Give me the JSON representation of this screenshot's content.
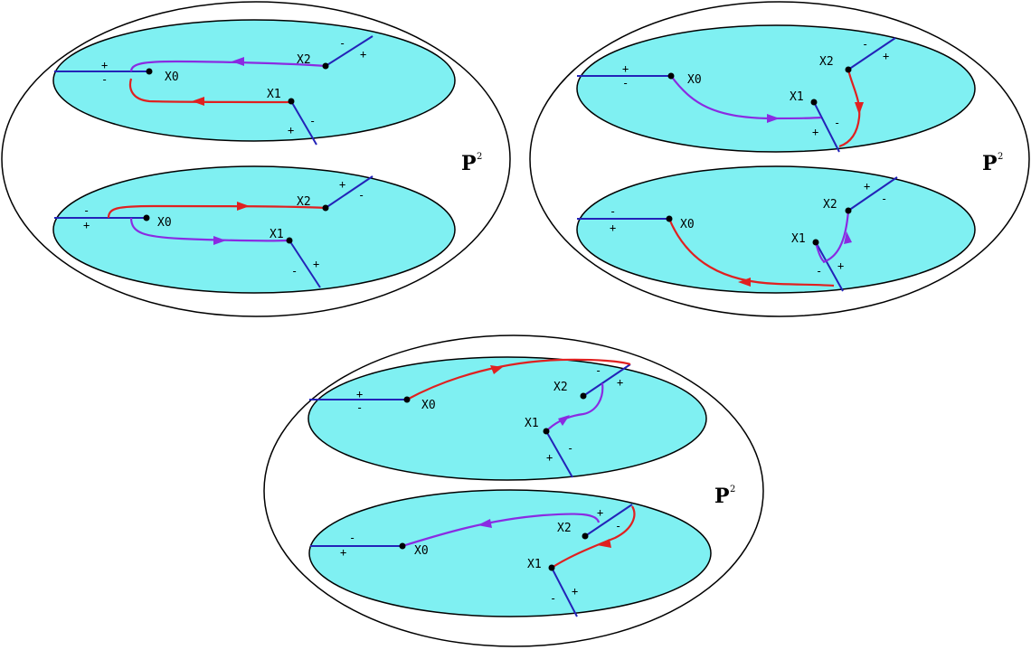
{
  "colors": {
    "sheet_fill": "#7ff0f2",
    "cut": "#2323b8",
    "path_red": "#e02020",
    "path_purple": "#8a2be2",
    "outline": "#000000"
  },
  "space_label": "P",
  "space_exponent": "2",
  "points": {
    "x0": "X0",
    "x1": "X1",
    "x2": "X2"
  },
  "signs": {
    "plus": "+",
    "minus": "-"
  }
}
